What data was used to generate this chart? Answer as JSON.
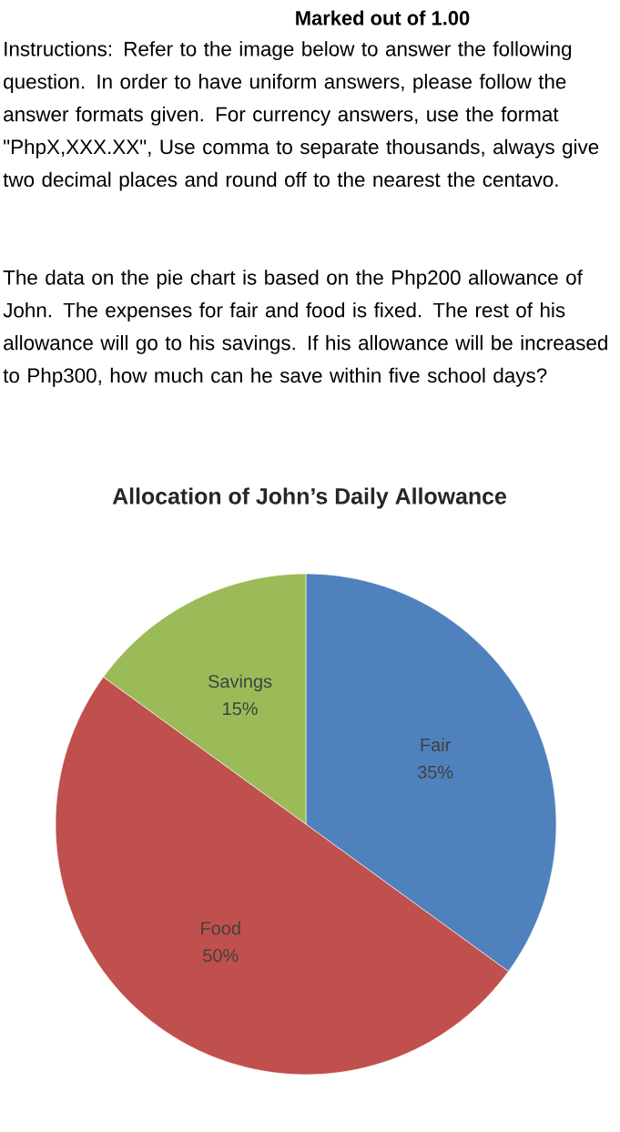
{
  "chart_data": {
    "type": "pie",
    "title": "Allocation of John’s Daily Allowance",
    "annotations": [
      "Marked out of 1.00",
      "Instructions: Refer to the image below to answer the following question. In order to have uniform answers, please follow the answer formats given. For currency answers, use the format \"PhpX,XXX.XX\", Use comma to separate thousands, always give two decimal places and round off to the nearest the centavo.",
      "The data on the pie chart is based on the Php200 allowance of John. The expenses for fair and food is fixed. The rest of his allowance will go to his savings. If his allowance will be increased to Php300, how much can he save within five school days?"
    ],
    "categories": [
      "Fair",
      "Food",
      "Savings"
    ],
    "values": [
      35,
      50,
      15
    ],
    "value_labels": [
      "35%",
      "50%",
      "15%"
    ],
    "colors": [
      "#4f81bd",
      "#c0504d",
      "#9bbb59"
    ]
  }
}
